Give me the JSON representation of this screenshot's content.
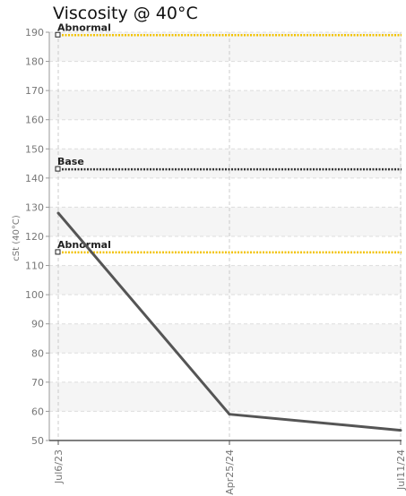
{
  "chart_data": {
    "type": "line",
    "title": "Viscosity @ 40°C",
    "ylabel": "cSt (40°C)",
    "xlabel": "",
    "ylim": [
      50,
      190
    ],
    "yticks": [
      50,
      60,
      70,
      80,
      90,
      100,
      110,
      120,
      130,
      140,
      150,
      160,
      170,
      180,
      190
    ],
    "x": [
      "Jul6/23",
      "Apr25/24",
      "Jul11/24"
    ],
    "series": [
      {
        "name": "",
        "color": "#555555",
        "values": [
          128,
          59,
          53.5
        ]
      }
    ],
    "reference_lines": [
      {
        "label": "Abnormal",
        "value": 189,
        "color": "#f2c200",
        "style": "dotted"
      },
      {
        "label": "Base",
        "value": 143,
        "color": "#333333",
        "style": "dotted"
      },
      {
        "label": "Abnormal",
        "value": 114.5,
        "color": "#f2c200",
        "style": "dotted"
      }
    ],
    "grid": true,
    "band_colors": [
      "#f5f5f5",
      "#ffffff"
    ]
  }
}
